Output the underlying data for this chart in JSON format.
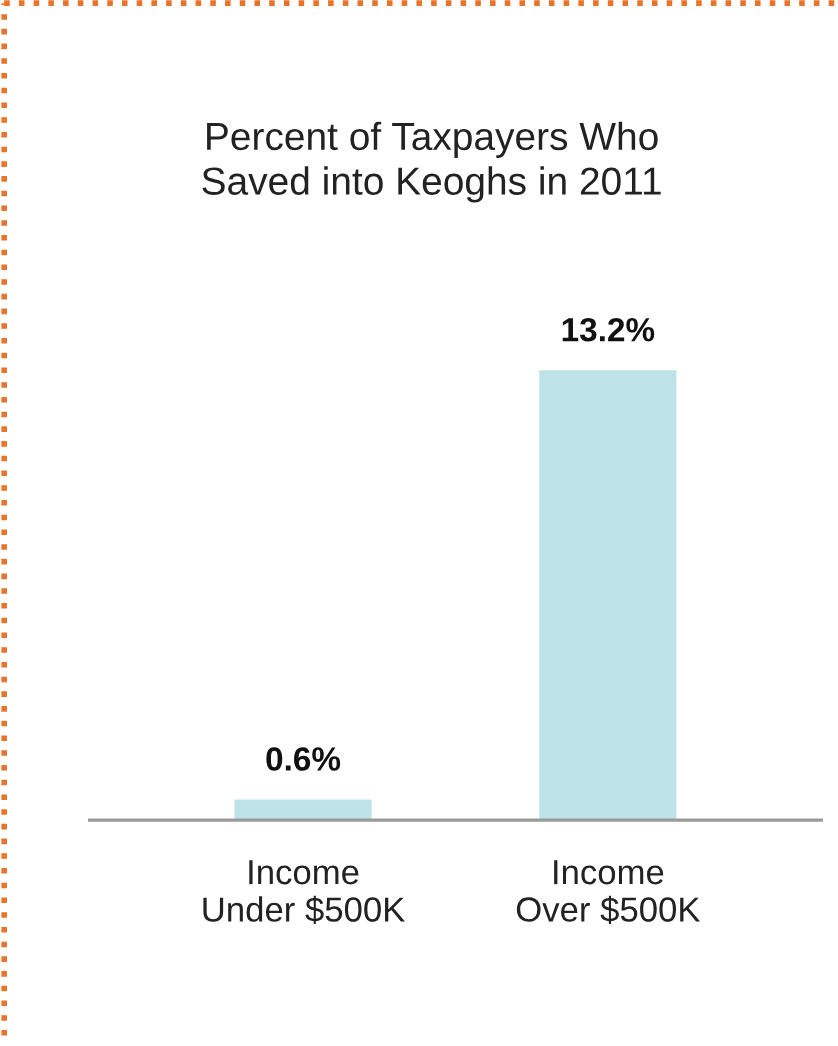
{
  "chart_data": {
    "type": "bar",
    "title": "Percent of Taxpayers Who\nSaved into Keoghs in 2011",
    "categories": [
      "Income\nUnder $500K",
      "Income\nOver $500K"
    ],
    "values": [
      0.6,
      13.2
    ],
    "value_labels": [
      "0.6%",
      "13.2%"
    ],
    "color": "#bde3e8",
    "grid": false,
    "legend": false
  }
}
